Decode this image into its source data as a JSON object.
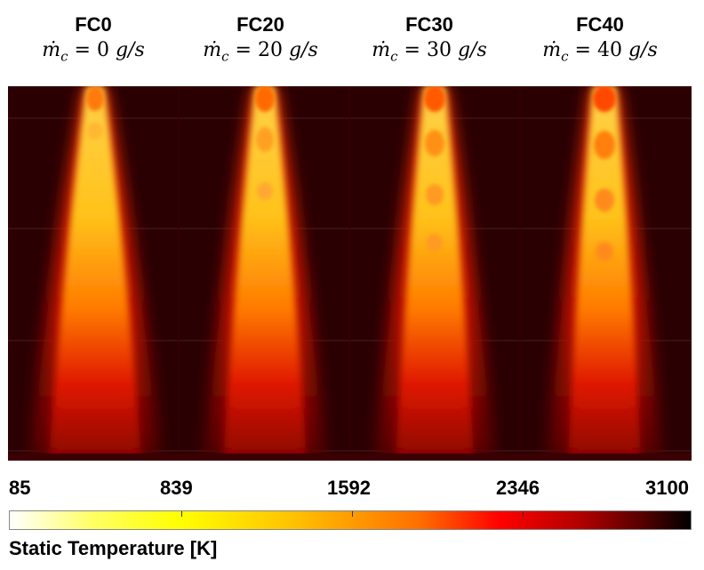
{
  "columns": [
    {
      "title": "FC0",
      "formula_value": "0"
    },
    {
      "title": "FC20",
      "formula_value": "20"
    },
    {
      "title": "FC30",
      "formula_value": "30"
    },
    {
      "title": "FC40",
      "formula_value": "40"
    }
  ],
  "formula": {
    "symbol": "ṁ",
    "subscript": "c",
    "equals": " = ",
    "unit": " g/s"
  },
  "colorbar": {
    "label": "Static Temperature [K]",
    "ticks": [
      "85",
      "839",
      "1592",
      "2346",
      "3100"
    ],
    "range": [
      85,
      3100
    ],
    "colors": [
      "#ffffff",
      "#ffff00",
      "#ff7000",
      "#ff0000",
      "#000000"
    ]
  },
  "field_background": "#2a0002"
}
